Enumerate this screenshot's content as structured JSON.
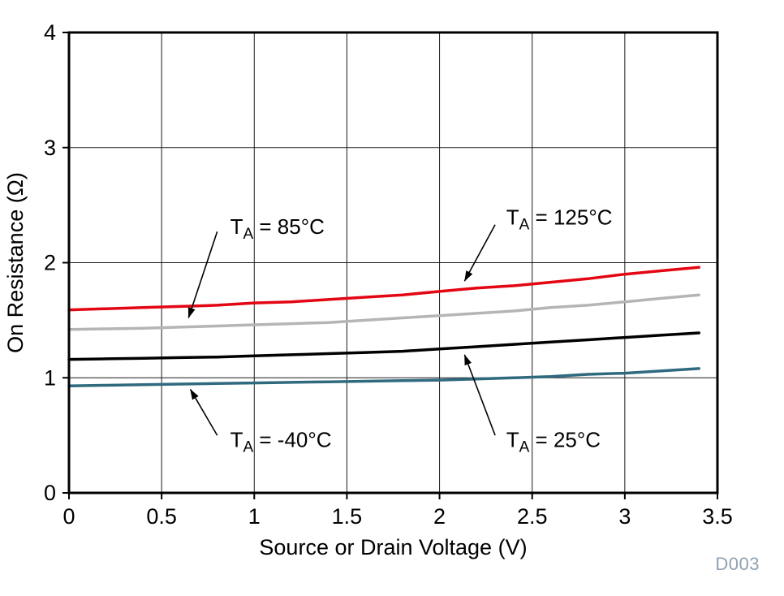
{
  "chart_data": {
    "type": "line",
    "title": "",
    "xlabel": "Source or Drain Voltage (V)",
    "ylabel": "On Resistance (Ω)",
    "xlim": [
      0,
      3.5
    ],
    "ylim": [
      0,
      4
    ],
    "xticks": [
      0,
      0.5,
      1,
      1.5,
      2,
      2.5,
      3,
      3.5
    ],
    "xtick_labels": [
      "0",
      "0.5",
      "1",
      "1.5",
      "2",
      "2.5",
      "3",
      "3.5"
    ],
    "yticks": [
      0,
      1,
      2,
      3,
      4
    ],
    "ytick_labels": [
      "0",
      "1",
      "2",
      "3",
      "4"
    ],
    "grid": true,
    "axis_color": "#000000",
    "grid_color": "#1a1a1a",
    "x": [
      0,
      0.2,
      0.4,
      0.6,
      0.8,
      1.0,
      1.2,
      1.4,
      1.6,
      1.8,
      2.0,
      2.2,
      2.4,
      2.6,
      2.8,
      3.0,
      3.2,
      3.4
    ],
    "series": [
      {
        "name": "TA = -40°C",
        "slug": "ta-minus40c",
        "color": "#2f6a7f",
        "values": [
          0.93,
          0.935,
          0.94,
          0.945,
          0.95,
          0.955,
          0.96,
          0.965,
          0.97,
          0.975,
          0.98,
          0.99,
          1.0,
          1.01,
          1.03,
          1.04,
          1.06,
          1.08
        ]
      },
      {
        "name": "TA = 25°C",
        "slug": "ta-25c",
        "color": "#000000",
        "values": [
          1.16,
          1.165,
          1.17,
          1.175,
          1.18,
          1.19,
          1.2,
          1.21,
          1.22,
          1.23,
          1.25,
          1.27,
          1.29,
          1.31,
          1.33,
          1.35,
          1.37,
          1.39
        ]
      },
      {
        "name": "TA = 85°C",
        "slug": "ta-85c",
        "color": "#b5b5b5",
        "values": [
          1.42,
          1.425,
          1.43,
          1.44,
          1.45,
          1.46,
          1.47,
          1.48,
          1.5,
          1.52,
          1.54,
          1.56,
          1.58,
          1.61,
          1.63,
          1.66,
          1.69,
          1.72
        ]
      },
      {
        "name": "TA = 125°C",
        "slug": "ta-125c",
        "color": "#e30613",
        "values": [
          1.59,
          1.6,
          1.61,
          1.62,
          1.63,
          1.65,
          1.66,
          1.68,
          1.7,
          1.72,
          1.75,
          1.78,
          1.8,
          1.83,
          1.86,
          1.9,
          1.93,
          1.96
        ]
      }
    ],
    "annotations": [
      {
        "slug": "ta-85c",
        "pre": "T",
        "sub": "A",
        "rest": " = 85°C",
        "label_x": 0.87,
        "label_y": 2.25,
        "arrow": [
          0.8,
          2.27,
          0.645,
          1.52
        ]
      },
      {
        "slug": "ta-125c",
        "pre": "T",
        "sub": "A",
        "rest": " = 125°C",
        "label_x": 2.36,
        "label_y": 2.33,
        "arrow": [
          2.3,
          2.33,
          2.135,
          1.84
        ]
      },
      {
        "slug": "ta-minus40c",
        "pre": "T",
        "sub": "A",
        "rest": " = -40°C",
        "label_x": 0.87,
        "label_y": 0.4,
        "arrow": [
          0.8,
          0.5,
          0.655,
          0.9
        ]
      },
      {
        "slug": "ta-25c",
        "pre": "T",
        "sub": "A",
        "rest": " = 25°C",
        "label_x": 2.36,
        "label_y": 0.4,
        "arrow": [
          2.3,
          0.5,
          2.135,
          1.2
        ]
      }
    ],
    "watermark": "D003",
    "watermark_color": "#8fa1b3"
  }
}
